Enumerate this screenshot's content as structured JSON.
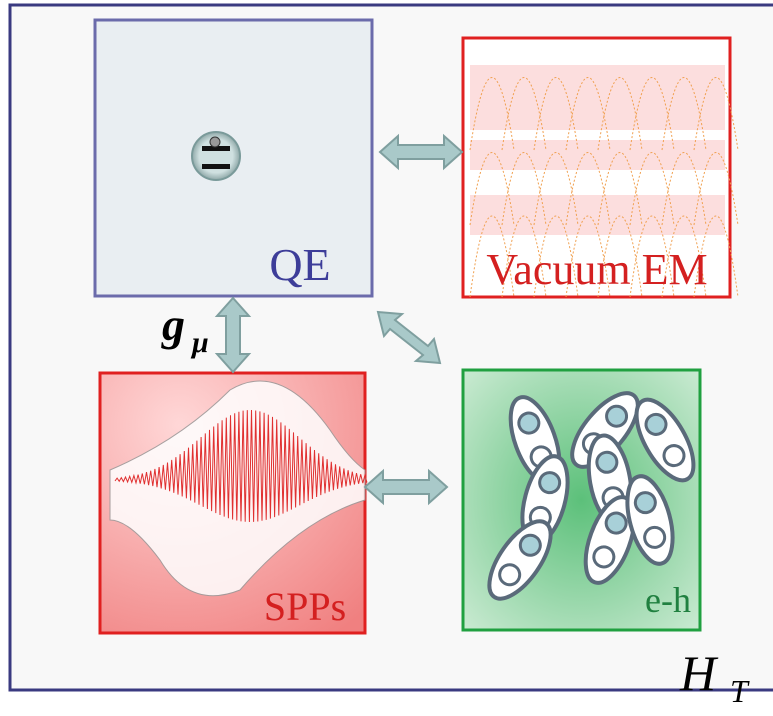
{
  "boxes": [
    {
      "label": "QE"
    },
    {
      "label": "Vacuum EM"
    },
    {
      "label": "SPPs"
    },
    {
      "label": "e-h"
    }
  ],
  "coupling": {
    "symbol": "g",
    "subscript": "μ"
  },
  "hamiltonian": {
    "symbol": "H",
    "subscript": "T"
  }
}
